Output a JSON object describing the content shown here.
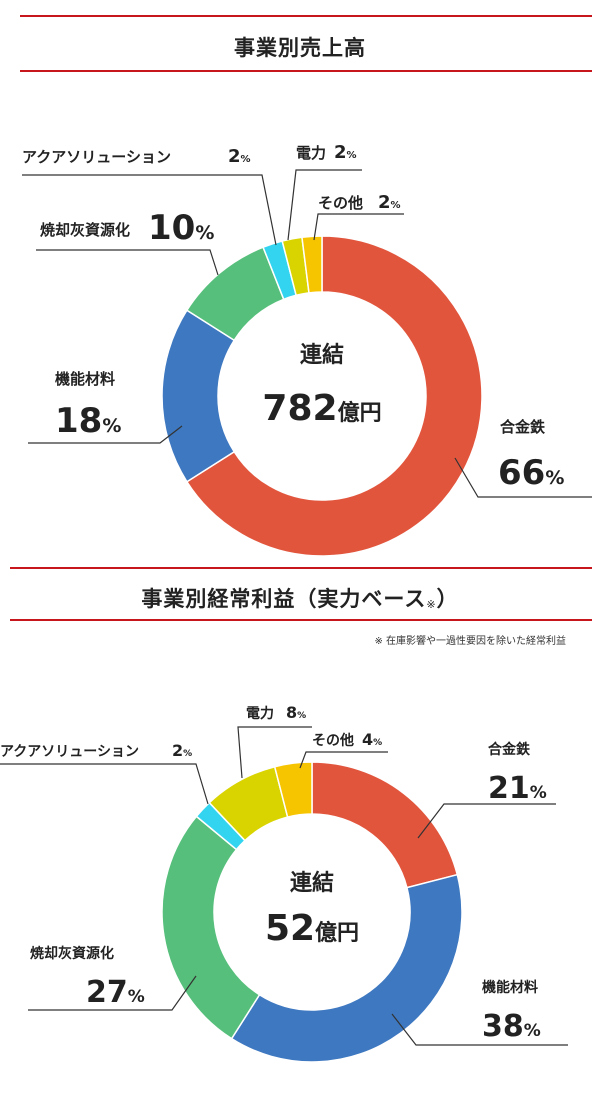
{
  "sales": {
    "title": "事業別売上高",
    "center_line1": "連結",
    "center_value": "782",
    "center_unit": "億円"
  },
  "profit": {
    "title": "事業別経常利益（実力ベース",
    "title_mark": "※",
    "title_close": "）",
    "footnote": "※ 在庫影響や一過性要因を除いた経常利益",
    "center_line1": "連結",
    "center_value": "52",
    "center_unit": "億円"
  },
  "chart_data": [
    {
      "type": "pie",
      "title": "事業別売上高",
      "center_label": "連結 782億円",
      "categories": [
        "合金鉄",
        "機能材料",
        "焼却灰資源化",
        "アクアソリューション",
        "電力",
        "その他"
      ],
      "values": [
        66,
        18,
        10,
        2,
        2,
        2
      ],
      "unit": "%",
      "colors": [
        "#e2553d",
        "#3e78c0",
        "#56bf7b",
        "#33d4f0",
        "#d9d400",
        "#f7c400"
      ]
    },
    {
      "type": "pie",
      "title": "事業別経常利益（実力ベース※）",
      "center_label": "連結 52億円",
      "categories": [
        "合金鉄",
        "機能材料",
        "焼却灰資源化",
        "アクアソリューション",
        "電力",
        "その他"
      ],
      "values": [
        21,
        38,
        27,
        2,
        8,
        4
      ],
      "unit": "%",
      "colors": [
        "#e2553d",
        "#3e78c0",
        "#56bf7b",
        "#33d4f0",
        "#d9d400",
        "#f7c400"
      ]
    }
  ]
}
